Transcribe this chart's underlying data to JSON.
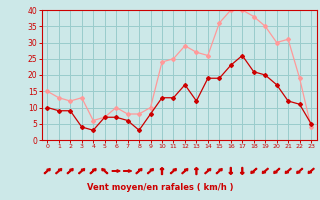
{
  "hours": [
    0,
    1,
    2,
    3,
    4,
    5,
    6,
    7,
    8,
    9,
    10,
    11,
    12,
    13,
    14,
    15,
    16,
    17,
    18,
    19,
    20,
    21,
    22,
    23
  ],
  "wind_mean": [
    10,
    9,
    9,
    4,
    3,
    7,
    7,
    6,
    3,
    8,
    13,
    13,
    17,
    12,
    19,
    19,
    23,
    26,
    21,
    20,
    17,
    12,
    11,
    5
  ],
  "wind_gust": [
    15,
    13,
    12,
    13,
    6,
    7,
    10,
    8,
    8,
    10,
    24,
    25,
    29,
    27,
    26,
    36,
    40,
    40,
    38,
    35,
    30,
    31,
    19,
    4
  ],
  "arrow_angles": [
    45,
    45,
    45,
    45,
    45,
    315,
    90,
    90,
    45,
    45,
    0,
    45,
    45,
    0,
    45,
    45,
    180,
    180,
    225,
    225,
    225,
    225,
    225,
    225
  ],
  "xlabel": "Vent moyen/en rafales ( km/h )",
  "ylim": [
    0,
    40
  ],
  "yticks": [
    0,
    5,
    10,
    15,
    20,
    25,
    30,
    35,
    40
  ],
  "bg_color": "#cce8e8",
  "grid_color": "#99cccc",
  "mean_color": "#cc0000",
  "gust_color": "#ff9999",
  "axis_color": "#cc0000",
  "tick_color": "#cc0000",
  "label_color": "#cc0000"
}
